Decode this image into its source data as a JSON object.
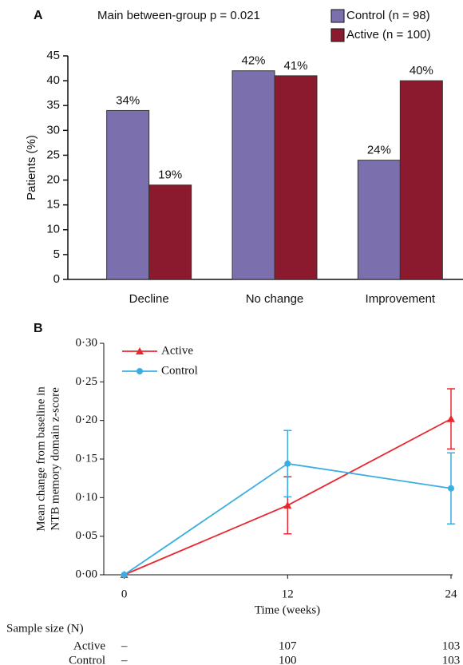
{
  "chart_data": [
    {
      "type": "bar",
      "panel": "A",
      "annotation": "Main between-group p = 0.021",
      "y_label": "Patients (%)",
      "categories": [
        "Decline",
        "No change",
        "Improvement"
      ],
      "series": [
        {
          "name": "Control (n = 98)",
          "color": "#7b6fad",
          "values": [
            34,
            42,
            24
          ],
          "value_labels": [
            "34%",
            "42%",
            "24%"
          ]
        },
        {
          "name": "Active (n = 100)",
          "color": "#8b1a2e",
          "values": [
            19,
            41,
            40
          ],
          "value_labels": [
            "19%",
            "41%",
            "40%"
          ]
        }
      ],
      "ylim": [
        0,
        45
      ],
      "yticks": [
        0,
        5,
        10,
        15,
        20,
        25,
        30,
        35,
        40,
        45
      ],
      "legend": "top-right"
    },
    {
      "type": "line",
      "panel": "B",
      "y_label": [
        "Mean change from baseline in",
        "NTB memory domain z-score"
      ],
      "x_label": "Time (weeks)",
      "x": [
        0,
        12,
        24
      ],
      "xlim": [
        -1.5,
        24
      ],
      "xticks": [
        0,
        12,
        24
      ],
      "series": [
        {
          "name": "Active",
          "color": "#e8282f",
          "marker": "triangle",
          "values": [
            0,
            0.09,
            0.202
          ],
          "errors": [
            null,
            0.037,
            0.039
          ]
        },
        {
          "name": "Control",
          "color": "#3aaee0",
          "marker": "circle",
          "values": [
            0,
            0.144,
            0.112
          ],
          "errors": [
            null,
            0.043,
            0.046
          ]
        }
      ],
      "ylim": [
        0,
        0.3
      ],
      "yticks": [
        {
          "value": 0,
          "label": "0·00"
        },
        {
          "value": 0.05,
          "label": "0·05"
        },
        {
          "value": 0.1,
          "label": "0·10"
        },
        {
          "value": 0.15,
          "label": "0·15"
        },
        {
          "value": 0.2,
          "label": "0·20"
        },
        {
          "value": 0.25,
          "label": "0·25"
        },
        {
          "value": 0.3,
          "label": "0·30"
        }
      ],
      "legend": "top-left",
      "sample_size": {
        "title": "Sample size (N)",
        "rows": [
          {
            "name": "Active",
            "values": [
              "–",
              107,
              103
            ]
          },
          {
            "name": "Control",
            "values": [
              "–",
              100,
              103
            ]
          }
        ]
      }
    }
  ]
}
